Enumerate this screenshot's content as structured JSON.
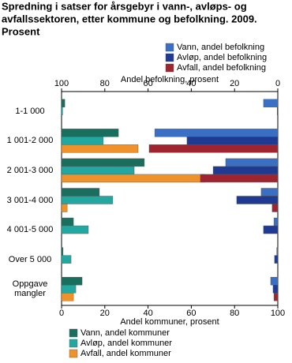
{
  "chart_data": {
    "type": "bar",
    "title": [
      "Spredning i satser for årsgebyr i vann-, avløps- og",
      "avfallssektoren, etter kommune og befolkning. 2009.",
      "Prosent"
    ],
    "x_label": "Andel kommuner, prosent",
    "x2_label": "Andel befolkning, prosent",
    "categories": [
      "1-1 000",
      "1 001-2 000",
      "2 001-3 000",
      "3 001-4 000",
      "4 001-5 000",
      "Over 5 000",
      "Oppgave mangler"
    ],
    "xlim": [
      0,
      100
    ],
    "xticks": [
      0,
      20,
      40,
      60,
      80,
      100
    ],
    "x2lim": [
      100,
      0
    ],
    "x2ticks": [
      100,
      80,
      60,
      40,
      20,
      0
    ],
    "series": [
      {
        "name": "Vann, andel befolkning",
        "color": "#3b6fc4",
        "axis": "x2",
        "values": [
          6.6,
          56.9,
          24.1,
          7.7,
          1.8,
          0.5,
          3.3
        ]
      },
      {
        "name": "Avløp, andel befolkning",
        "color": "#1f3a93",
        "axis": "x2",
        "values": [
          0.3,
          42,
          29.9,
          19,
          6.6,
          1.5,
          2.2
        ]
      },
      {
        "name": "Avfall, andel befolkning",
        "color": "#9e2430",
        "axis": "x2",
        "values": [
          0,
          59.5,
          35.8,
          2.6,
          0,
          0,
          1.8
        ]
      },
      {
        "name": "Vann, andel kommuner",
        "color": "#1a6e5e",
        "axis": "x",
        "values": [
          1.5,
          26.3,
          38.3,
          17.5,
          5.5,
          0.7,
          9.5
        ]
      },
      {
        "name": "Avløp, andel kommuner",
        "color": "#22a8a0",
        "axis": "x",
        "values": [
          0.5,
          19.3,
          33.6,
          23.7,
          12.4,
          4.4,
          6.6
        ]
      },
      {
        "name": "Avfall, andel kommuner",
        "color": "#f0922b",
        "axis": "x",
        "values": [
          0,
          35.4,
          66.4,
          2.6,
          0,
          0,
          5.5
        ]
      }
    ]
  }
}
